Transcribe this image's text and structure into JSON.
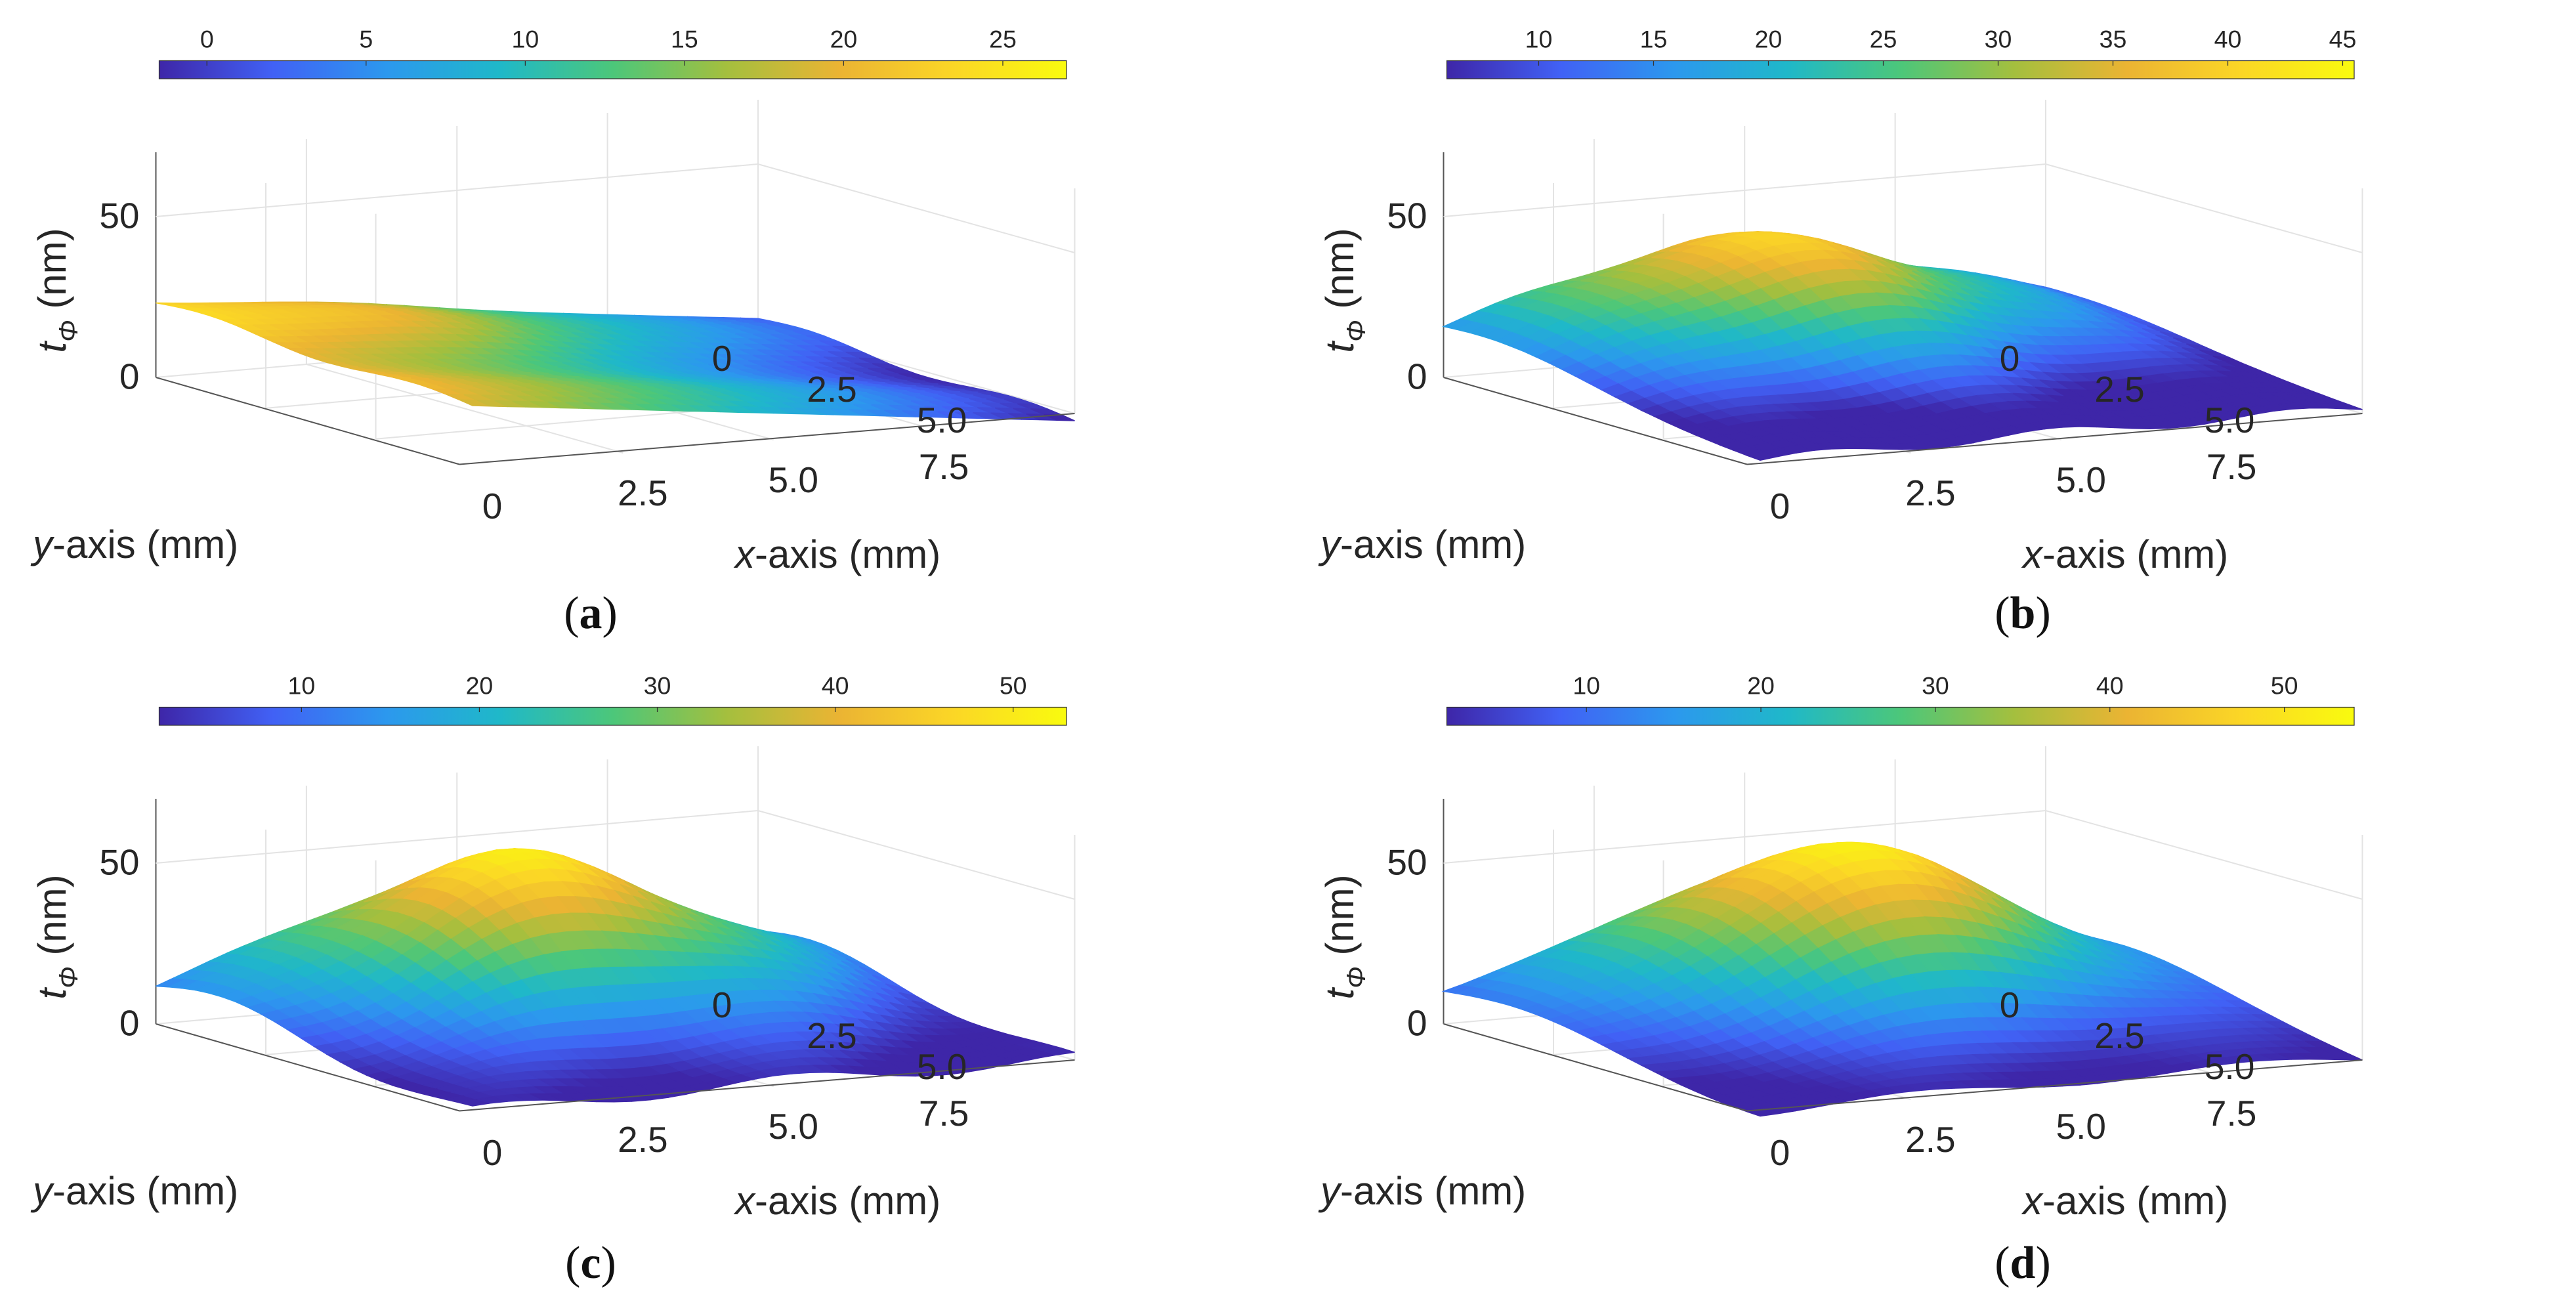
{
  "figure": {
    "axes": {
      "z_label_main": "t",
      "z_label_sub": "Φ",
      "z_unit": " (nm)",
      "x_label_italic": "x",
      "x_label_rest": "-axis (mm)",
      "y_label_italic": "y",
      "y_label_rest": "-axis (mm)",
      "x_ticks": [
        "0",
        "2.5",
        "5.0",
        "7.5"
      ],
      "y_ticks": [
        "0",
        "2.5",
        "5.0"
      ],
      "z_ticks": [
        "0",
        "50"
      ]
    },
    "colormap": [
      "#3e26a8",
      "#4161f5",
      "#2c98ee",
      "#1fb8c9",
      "#4cc77a",
      "#a4bf3e",
      "#ebb433",
      "#fbd626",
      "#f9fb0e"
    ]
  },
  "chart_data": [
    {
      "type": "surface",
      "panel_label": "a",
      "title": "",
      "xlabel": "x-axis (mm)",
      "ylabel": "y-axis (mm)",
      "zlabel": "tΦ (nm)",
      "zlim": [
        0,
        70
      ],
      "colorbar": {
        "min": -1.5,
        "max": 27,
        "ticks": [
          "0",
          "5",
          "10",
          "15",
          "20",
          "25"
        ]
      },
      "peak_thickness_nm": 27,
      "description_values": {
        "min_nm": 0,
        "max_nm": 27
      }
    },
    {
      "type": "surface",
      "panel_label": "b",
      "title": "",
      "xlabel": "x-axis (mm)",
      "ylabel": "y-axis (mm)",
      "zlabel": "tΦ (nm)",
      "zlim": [
        0,
        70
      ],
      "colorbar": {
        "min": 6,
        "max": 45.5,
        "ticks": [
          "10",
          "15",
          "20",
          "25",
          "30",
          "35",
          "40",
          "45"
        ]
      },
      "peak_thickness_nm": 45,
      "description_values": {
        "min_nm": 6,
        "max_nm": 45
      }
    },
    {
      "type": "surface",
      "panel_label": "c",
      "title": "",
      "xlabel": "x-axis (mm)",
      "ylabel": "y-axis (mm)",
      "zlabel": "tΦ (nm)",
      "zlim": [
        0,
        70
      ],
      "colorbar": {
        "min": 2,
        "max": 53,
        "ticks": [
          "10",
          "20",
          "30",
          "40",
          "50"
        ]
      },
      "peak_thickness_nm": 53,
      "description_values": {
        "min_nm": 2,
        "max_nm": 53
      }
    },
    {
      "type": "surface",
      "panel_label": "d",
      "title": "",
      "xlabel": "x-axis (mm)",
      "ylabel": "y-axis (mm)",
      "zlabel": "tΦ (nm)",
      "zlim": [
        0,
        70
      ],
      "colorbar": {
        "min": 2,
        "max": 54,
        "ticks": [
          "10",
          "20",
          "30",
          "40",
          "50"
        ]
      },
      "peak_thickness_nm": 54,
      "description_values": {
        "min_nm": 2,
        "max_nm": 54
      }
    }
  ]
}
